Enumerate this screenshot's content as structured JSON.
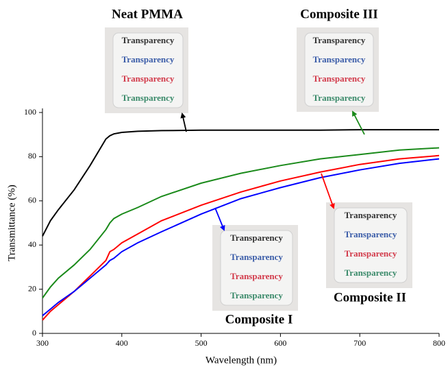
{
  "chart_data": {
    "type": "line",
    "x_label": "Wavelength (nm)",
    "y_label": "Transmittance (%)",
    "x": [
      300,
      310,
      320,
      340,
      360,
      380,
      385,
      390,
      400,
      420,
      450,
      500,
      550,
      600,
      650,
      700,
      750,
      800
    ],
    "series": [
      {
        "name": "Neat PMMA",
        "color": "#000000",
        "values": [
          44,
          51,
          56,
          65,
          76,
          88,
          89.5,
          90.3,
          91,
          91.5,
          91.8,
          92,
          92,
          92,
          92,
          92.2,
          92.2,
          92.2
        ]
      },
      {
        "name": "Composite III",
        "color": "#1a8a1a",
        "values": [
          16,
          21,
          25,
          31,
          38,
          47,
          50,
          52,
          54,
          57,
          62,
          68,
          72.5,
          76,
          79,
          81,
          83,
          84
        ]
      },
      {
        "name": "Composite II",
        "color": "#ff0000",
        "values": [
          6,
          10,
          13,
          19,
          26,
          33,
          37,
          38,
          41,
          45,
          51,
          58,
          64,
          69,
          73,
          76.5,
          79,
          80.5
        ]
      },
      {
        "name": "Composite I",
        "color": "#0000ff",
        "values": [
          8,
          11,
          14,
          19,
          25,
          31,
          33,
          34,
          37,
          41,
          46,
          54,
          61,
          66,
          70.5,
          74,
          77,
          79
        ]
      }
    ],
    "inset_text": "Transparency",
    "xlim": [
      300,
      800
    ],
    "xticks": [
      300,
      400,
      500,
      600,
      700,
      800
    ],
    "ylim": [
      0,
      100
    ],
    "yticks": [
      0,
      20,
      40,
      60,
      80,
      100
    ],
    "grid": false
  }
}
